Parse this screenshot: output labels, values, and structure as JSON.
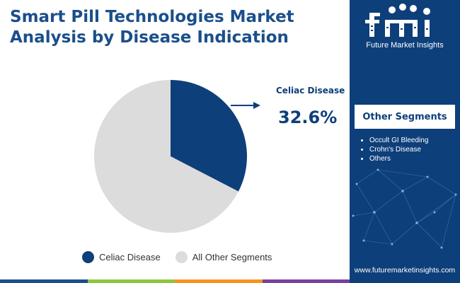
{
  "title": "Smart Pill Technologies Market Analysis by Disease Indication",
  "callout": {
    "label": "Celiac Disease",
    "value": "32.6%"
  },
  "chart_data": {
    "type": "pie",
    "title": "Smart Pill Technologies Market Analysis by Disease Indication",
    "slices": [
      {
        "label": "Celiac Disease",
        "value": 32.6,
        "color": "#0d3f7a"
      },
      {
        "label": "All Other Segments",
        "value": 67.4,
        "color": "#dcdcdc"
      }
    ],
    "legend_position": "bottom",
    "highlight": "Celiac Disease"
  },
  "legend": [
    {
      "label": "Celiac Disease",
      "color": "#0d3f7a"
    },
    {
      "label": "All Other Segments",
      "color": "#dcdcdc"
    }
  ],
  "side_panel": {
    "brand": "Future Market Insights",
    "segments_title": "Other Segments",
    "segments": [
      "Occult GI Bleeding",
      "Crohn's Disease",
      "Others"
    ],
    "website": "www.futuremarketinsights.com",
    "background": "#0d3f7a"
  },
  "bottom_bar_colors": [
    "#1b4f8a",
    "#8cc63f",
    "#f7941d",
    "#7b3f9e"
  ],
  "icons": [
    "fmi-logo-icon",
    "arrow-right-icon"
  ]
}
